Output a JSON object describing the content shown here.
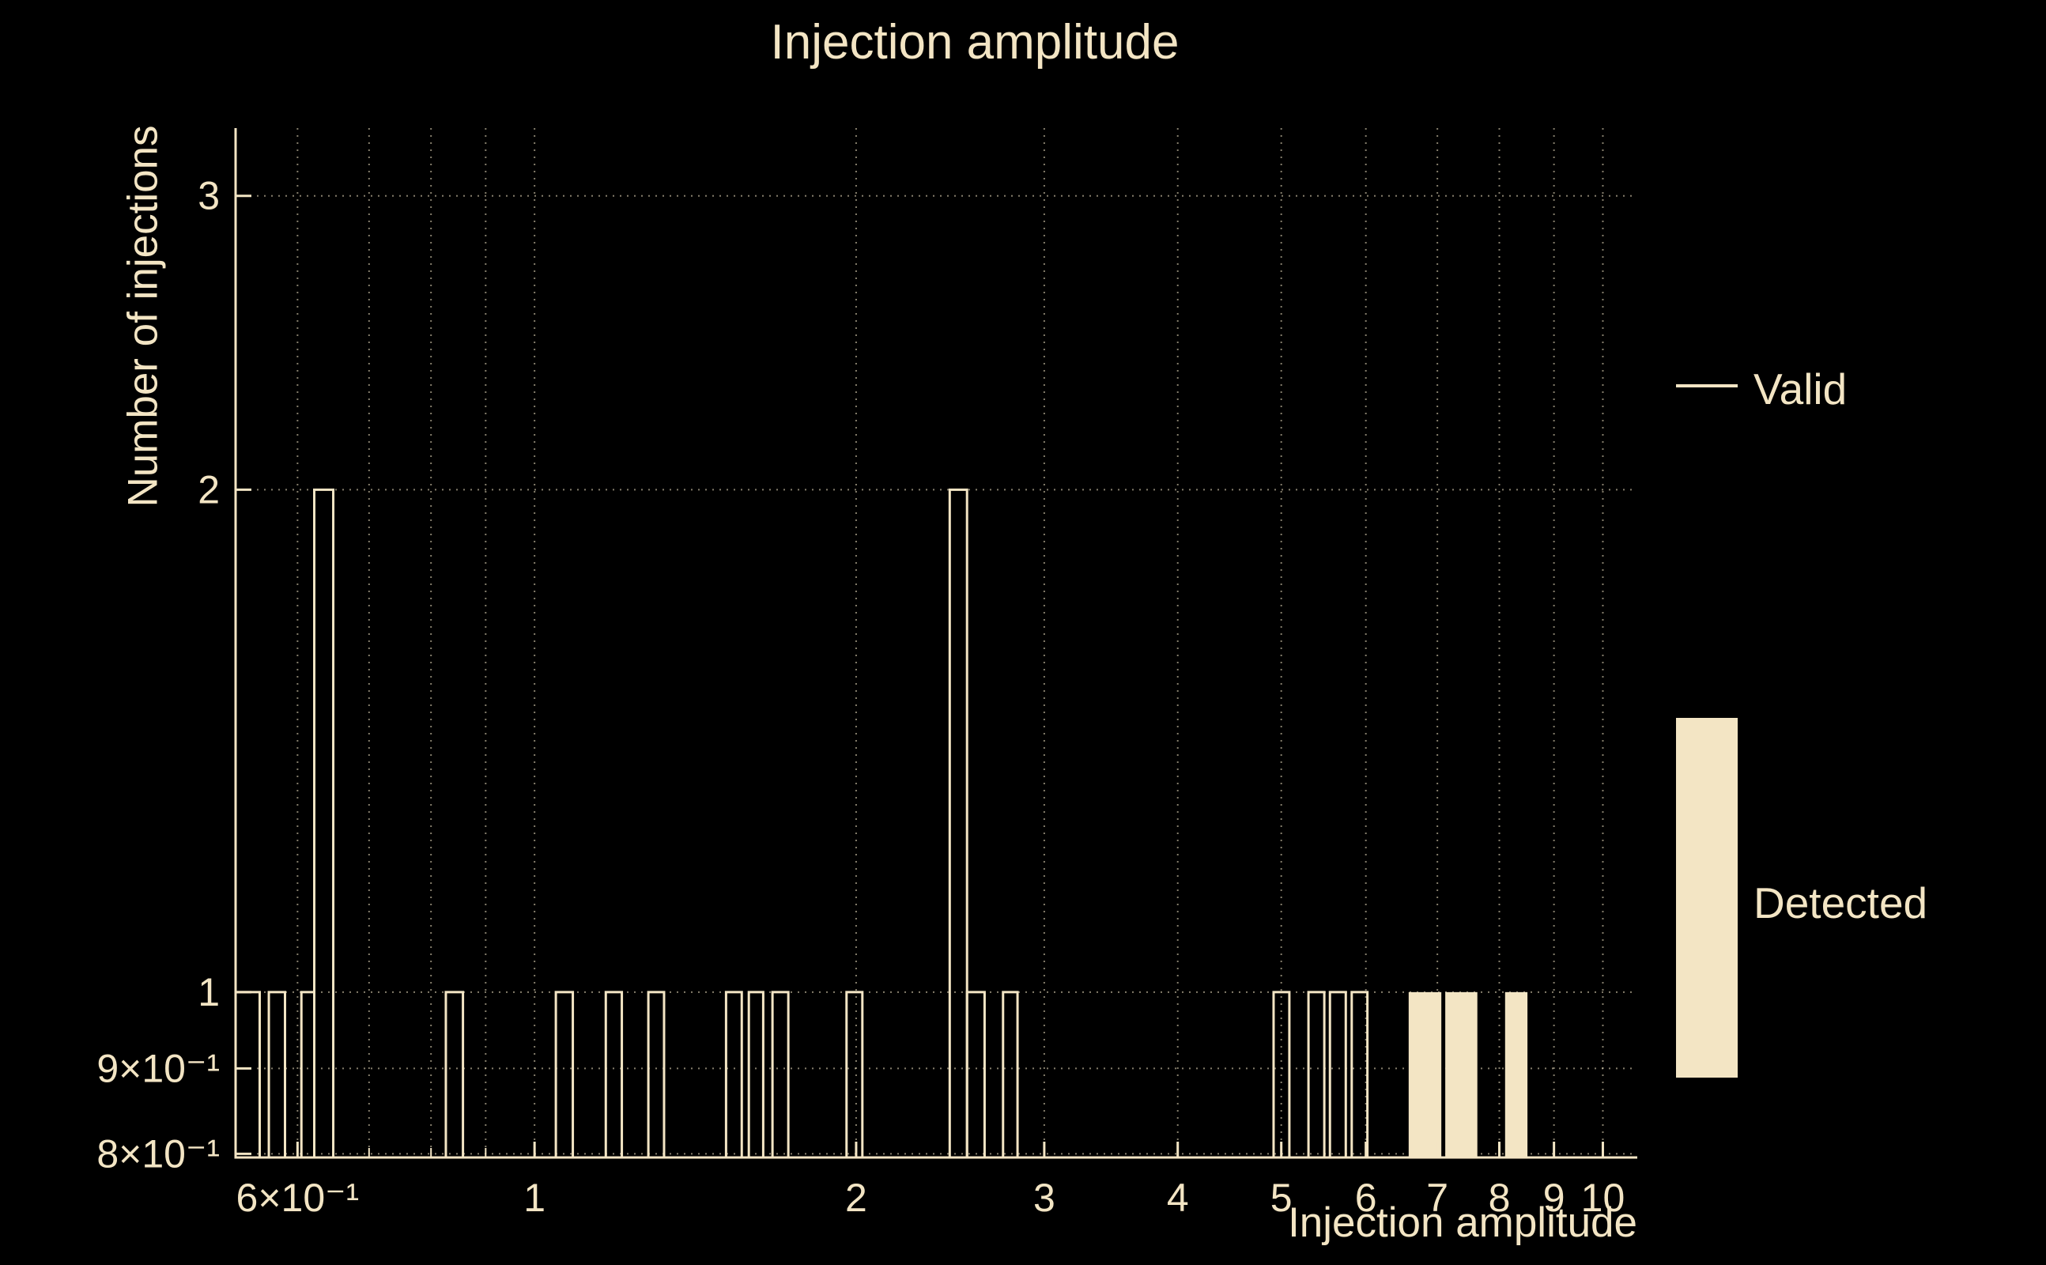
{
  "colors": {
    "background": "#000000",
    "foreground": "#f3e5c4",
    "grid": "#f3e5c4"
  },
  "chart_data": {
    "type": "bar",
    "subtype": "log-log step histogram",
    "title": "Injection amplitude",
    "xlabel": "Injection amplitude",
    "ylabel": "Number of injections",
    "x_scale": "log",
    "y_scale": "log",
    "x_range": [
      0.525,
      10.77
    ],
    "y_range": [
      0.796,
      3.294
    ],
    "x_ticks": [
      {
        "v": 0.6,
        "label": "6×10⁻¹"
      },
      {
        "v": 1,
        "label": "1"
      },
      {
        "v": 2,
        "label": "2"
      },
      {
        "v": 3,
        "label": "3"
      },
      {
        "v": 4,
        "label": "4"
      },
      {
        "v": 5,
        "label": "5"
      },
      {
        "v": 6,
        "label": "6"
      },
      {
        "v": 7,
        "label": "7"
      },
      {
        "v": 8,
        "label": "8"
      },
      {
        "v": 9,
        "label": "9"
      },
      {
        "v": 10,
        "label": "10"
      }
    ],
    "y_ticks": [
      {
        "v": 0.8,
        "label": "8×10⁻¹"
      },
      {
        "v": 0.9,
        "label": "9×10⁻¹"
      },
      {
        "v": 1,
        "label": "1"
      },
      {
        "v": 2,
        "label": "2"
      },
      {
        "v": 3,
        "label": "3"
      }
    ],
    "x_gridlines": [
      0.6,
      0.7,
      0.8,
      0.9,
      1,
      2,
      3,
      4,
      5,
      6,
      7,
      8,
      9,
      10
    ],
    "y_gridlines": [
      0.8,
      0.9,
      1,
      2,
      3
    ],
    "series": [
      {
        "name": "Valid",
        "style": "step-outline",
        "bins": [
          [
            0.525,
            0.553,
            1
          ],
          [
            0.564,
            0.584,
            1
          ],
          [
            0.605,
            0.622,
            1
          ],
          [
            0.622,
            0.648,
            2
          ],
          [
            0.826,
            0.857,
            1
          ],
          [
            1.047,
            1.086,
            1
          ],
          [
            1.166,
            1.207,
            1
          ],
          [
            1.278,
            1.322,
            1
          ],
          [
            1.511,
            1.563,
            1
          ],
          [
            1.587,
            1.637,
            1
          ],
          [
            1.67,
            1.728,
            1
          ],
          [
            1.959,
            2.027,
            1
          ],
          [
            2.447,
            2.54,
            2
          ],
          [
            2.54,
            2.638,
            1
          ],
          [
            2.745,
            2.832,
            1
          ],
          [
            4.918,
            5.088,
            1
          ],
          [
            5.302,
            5.486,
            1
          ],
          [
            5.553,
            5.746,
            1
          ],
          [
            5.82,
            6.02,
            1
          ]
        ]
      },
      {
        "name": "Detected",
        "style": "filled",
        "bins": [
          [
            6.58,
            7.06,
            1
          ],
          [
            7.12,
            7.63,
            1
          ],
          [
            8.1,
            8.5,
            1
          ]
        ]
      }
    ],
    "legend": [
      {
        "label": "Valid",
        "marker": "line"
      },
      {
        "label": "Detected",
        "marker": "box"
      }
    ],
    "legend_position": "right"
  }
}
